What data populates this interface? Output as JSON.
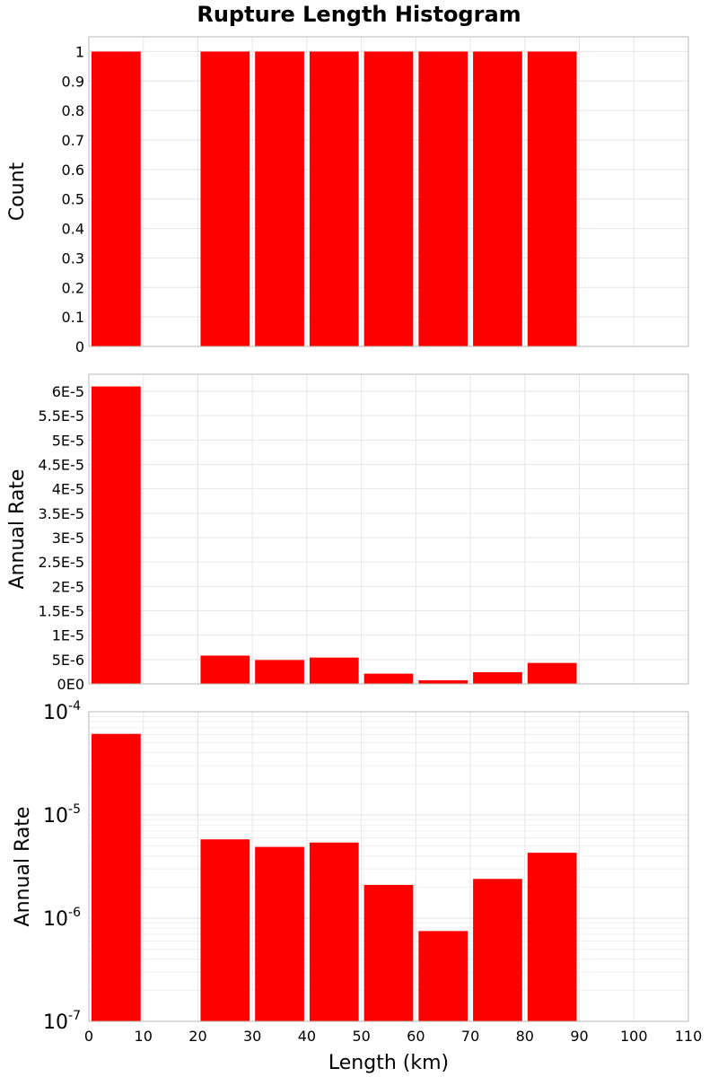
{
  "title": "Rupture Length Histogram",
  "chart_data": {
    "type": "bar",
    "title": "Rupture Length Histogram",
    "x": {
      "label": "Length (km)",
      "range": [
        0,
        110
      ],
      "ticks": [
        0,
        10,
        20,
        30,
        40,
        50,
        60,
        70,
        80,
        90,
        100,
        110
      ],
      "bin_width": 10
    },
    "bins": [
      {
        "x0": 0,
        "x1": 10
      },
      {
        "x0": 20,
        "x1": 30
      },
      {
        "x0": 30,
        "x1": 40
      },
      {
        "x0": 40,
        "x1": 50
      },
      {
        "x0": 50,
        "x1": 60
      },
      {
        "x0": 60,
        "x1": 70
      },
      {
        "x0": 70,
        "x1": 80
      },
      {
        "x0": 80,
        "x1": 90
      }
    ],
    "panels": [
      {
        "name": "count",
        "ylabel": "Count",
        "scale": "linear",
        "ylim": [
          0,
          1.05
        ],
        "ticks": [
          0,
          0.1,
          0.2,
          0.3,
          0.4,
          0.5,
          0.6,
          0.7,
          0.8,
          0.9,
          1
        ],
        "tick_labels": [
          "0",
          "0.1",
          "0.2",
          "0.3",
          "0.4",
          "0.5",
          "0.6",
          "0.7",
          "0.8",
          "0.9",
          "1"
        ],
        "values": [
          1,
          1,
          1,
          1,
          1,
          1,
          1,
          1
        ]
      },
      {
        "name": "annual-rate-linear",
        "ylabel": "Annual Rate",
        "scale": "linear",
        "ylim": [
          0,
          6.35e-05
        ],
        "ticks": [
          0,
          5e-06,
          1e-05,
          1.5e-05,
          2e-05,
          2.5e-05,
          3e-05,
          3.5e-05,
          4e-05,
          4.5e-05,
          5e-05,
          5.5e-05,
          6e-05
        ],
        "tick_labels": [
          "0E0",
          "5E-6",
          "1E-5",
          "1.5E-5",
          "2E-5",
          "2.5E-5",
          "3E-5",
          "3.5E-5",
          "4E-5",
          "4.5E-5",
          "5E-5",
          "5.5E-5",
          "6E-5"
        ],
        "values": [
          6.1e-05,
          5.8e-06,
          4.9e-06,
          5.4e-06,
          2.1e-06,
          7.5e-07,
          2.4e-06,
          4.3e-06
        ]
      },
      {
        "name": "annual-rate-log",
        "ylabel": "Annual Rate",
        "scale": "log",
        "ylim": [
          1e-07,
          0.0001
        ],
        "ticks": [
          1e-07,
          1e-06,
          1e-05,
          0.0001
        ],
        "tick_labels": [
          {
            "base": "10",
            "exp": "-7"
          },
          {
            "base": "10",
            "exp": "-6"
          },
          {
            "base": "10",
            "exp": "-5"
          },
          {
            "base": "10",
            "exp": "-4"
          }
        ],
        "values": [
          6.1e-05,
          5.8e-06,
          4.9e-06,
          5.4e-06,
          2.1e-06,
          7.5e-07,
          2.4e-06,
          4.3e-06
        ]
      }
    ],
    "bar_color": "#ff0000",
    "grid": true
  }
}
